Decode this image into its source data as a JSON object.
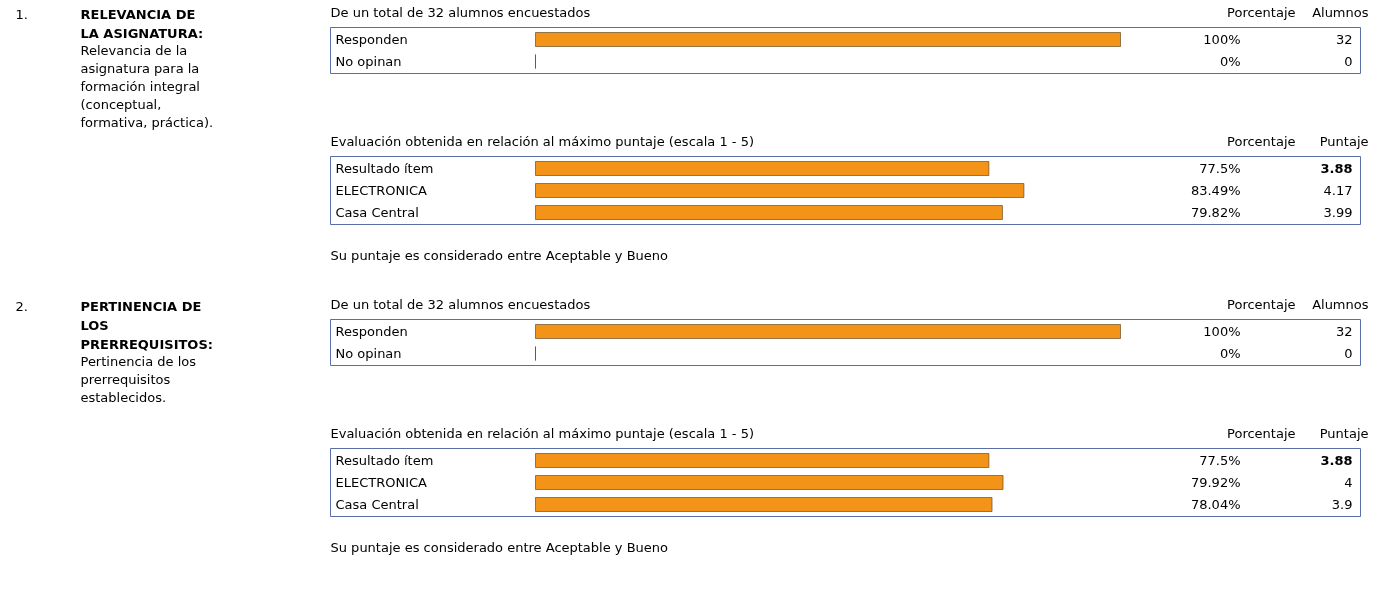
{
  "chart_data": [
    {
      "type": "other",
      "title": "RELEVANCIA DE LA ASIGNATURA:",
      "subtitle": "Relevancia de la asignatura para la formación integral (conceptual, formativa, práctica).",
      "annotations": [
        "1."
      ]
    },
    {
      "type": "bar",
      "orientation": "horizontal",
      "title": "De un total de 32 alumnos encuestados",
      "categories": [
        "Responden",
        "No opinan"
      ],
      "values": [
        100,
        0
      ],
      "value_labels": [
        "100%",
        "0%"
      ],
      "color": "#f39419",
      "annotations": [
        "32",
        "0",
        "Porcentaje",
        "Alumnos"
      ]
    },
    {
      "type": "bar",
      "orientation": "horizontal",
      "title": "Evaluación obtenida en relación al máximo puntaje (escala 1 - 5)",
      "categories": [
        "Resultado ítem",
        "ELECTRONICA",
        "Casa Central"
      ],
      "values": [
        77.5,
        83.49,
        79.82
      ],
      "value_labels": [
        "77.5%",
        "83.49%",
        "79.82%"
      ],
      "color": "#f39419",
      "annotations": [
        "3.88",
        "4.17",
        "3.99",
        "Porcentaje",
        "Puntaje",
        "Su puntaje es considerado entre Aceptable y Bueno"
      ]
    },
    {
      "type": "other",
      "title": "PERTINENCIA DE LOS PRERREQUISITOS:",
      "subtitle": "Pertinencia de los prerrequisitos establecidos.",
      "annotations": [
        "2."
      ]
    },
    {
      "type": "bar",
      "orientation": "horizontal",
      "title": "De un total de 32 alumnos encuestados",
      "categories": [
        "Responden",
        "No opinan"
      ],
      "values": [
        100,
        0
      ],
      "value_labels": [
        "100%",
        "0%"
      ],
      "color": "#f39419",
      "annotations": [
        "32",
        "0",
        "Porcentaje",
        "Alumnos"
      ]
    },
    {
      "type": "bar",
      "orientation": "horizontal",
      "title": "Evaluación obtenida en relación al máximo puntaje (escala 1 - 5)",
      "categories": [
        "Resultado ítem",
        "ELECTRONICA",
        "Casa Central"
      ],
      "values": [
        77.5,
        79.92,
        78.04
      ],
      "value_labels": [
        "77.5%",
        "79.92%",
        "78.04%"
      ],
      "color": "#f39419",
      "annotations": [
        "3.88",
        "4",
        "3.9",
        "Porcentaje",
        "Puntaje",
        "Su puntaje es considerado entre Aceptable y Bueno"
      ]
    }
  ]
}
